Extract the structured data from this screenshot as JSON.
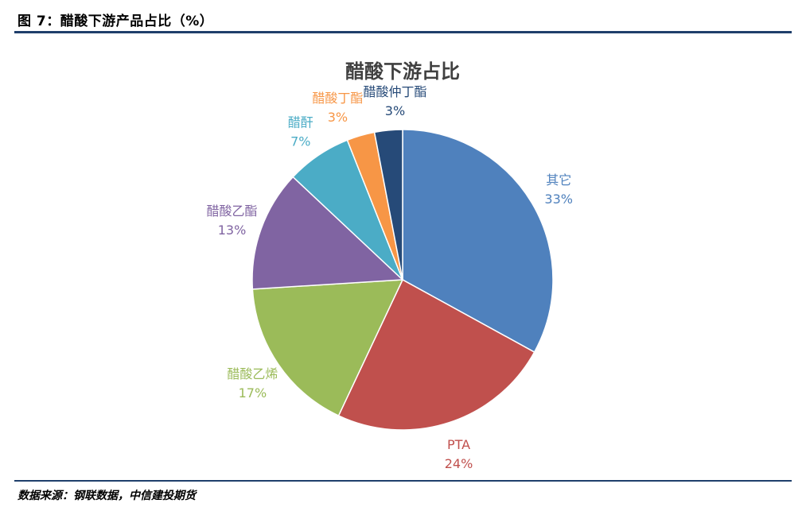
{
  "header": {
    "figure_title": "图 7：醋酸下游产品占比（%）"
  },
  "footer": {
    "source": "数据来源：钢联数据，中信建投期货"
  },
  "chart_data": {
    "type": "pie",
    "title": "醋酸下游占比",
    "slices": [
      {
        "label": "其它",
        "value": 33,
        "display": "33%",
        "color": "#4f81bd"
      },
      {
        "label": "PTA",
        "value": 24,
        "display": "24%",
        "color": "#c0504d"
      },
      {
        "label": "醋酸乙烯",
        "value": 17,
        "display": "17%",
        "color": "#9bbb59"
      },
      {
        "label": "醋酸乙酯",
        "value": 13,
        "display": "13%",
        "color": "#8064a2"
      },
      {
        "label": "醋酐",
        "value": 7,
        "display": "7%",
        "color": "#4bacc6"
      },
      {
        "label": "醋酸丁酯",
        "value": 3,
        "display": "3%",
        "color": "#f79646"
      },
      {
        "label": "醋酸仲丁酯",
        "value": 3,
        "display": "3%",
        "color": "#264a78"
      }
    ],
    "legend": "none",
    "data_labels": "outside"
  }
}
